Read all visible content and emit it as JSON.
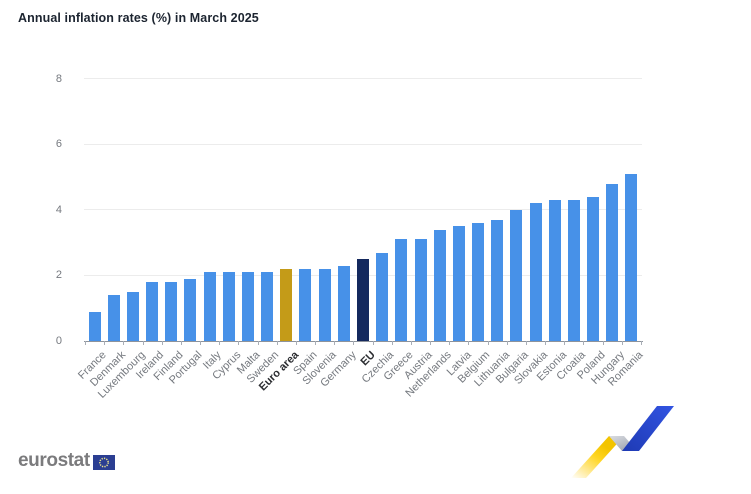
{
  "chart_data": {
    "type": "bar",
    "title": "Annual inflation rates (%) in March 2025",
    "categories": [
      "France",
      "Denmark",
      "Luxembourg",
      "Ireland",
      "Finland",
      "Portugal",
      "Italy",
      "Cyprus",
      "Malta",
      "Sweden",
      "Euro area",
      "Spain",
      "Slovenia",
      "Germany",
      "EU",
      "Czechia",
      "Greece",
      "Austria",
      "Netherlands",
      "Latvia",
      "Belgium",
      "Lithuania",
      "Bulgaria",
      "Slovakia",
      "Estonia",
      "Croatia",
      "Poland",
      "Hungary",
      "Romania"
    ],
    "values": [
      0.9,
      1.4,
      1.5,
      1.8,
      1.8,
      1.9,
      2.1,
      2.1,
      2.1,
      2.1,
      2.2,
      2.2,
      2.2,
      2.3,
      2.5,
      2.7,
      3.1,
      3.1,
      3.4,
      3.5,
      3.6,
      3.7,
      4.0,
      4.2,
      4.3,
      4.3,
      4.4,
      4.8,
      5.1
    ],
    "xlabel": "",
    "ylabel": "",
    "ylim": [
      0,
      8
    ],
    "yticks": [
      0,
      2,
      4,
      6,
      8
    ],
    "grid": true,
    "legend": false,
    "x_tick_rotation_deg": -45,
    "sort_order": "ascending",
    "emphasized_categories": [
      "Euro area",
      "EU"
    ],
    "bar_color_overrides": {
      "Euro area": "bar_euro_area",
      "EU": "bar_eu"
    }
  },
  "footer": {
    "brand": "eurostat"
  },
  "icons": {
    "flag": "eu-flag-icon",
    "brand_mark": "eurostat-ribbon-icon"
  },
  "colors": {
    "bar_default": "#4791E8",
    "bar_euro_area": "#C49B18",
    "bar_eu": "#14295E",
    "gridline": "#ececec",
    "axis_line": "#8d939c",
    "tick": "#a9aeb6",
    "axis_label": "#75797f",
    "axis_label_emphasis": "#2b2d31",
    "title": "#1c2430",
    "brand_text": "#7b7b7d",
    "flag_blue": "#2B3E92",
    "flag_stars": "#E9E28C",
    "ribbon_yellow": "#FFD520",
    "ribbon_gray": "#A8ADB8",
    "ribbon_blue": "#2A46C4"
  }
}
